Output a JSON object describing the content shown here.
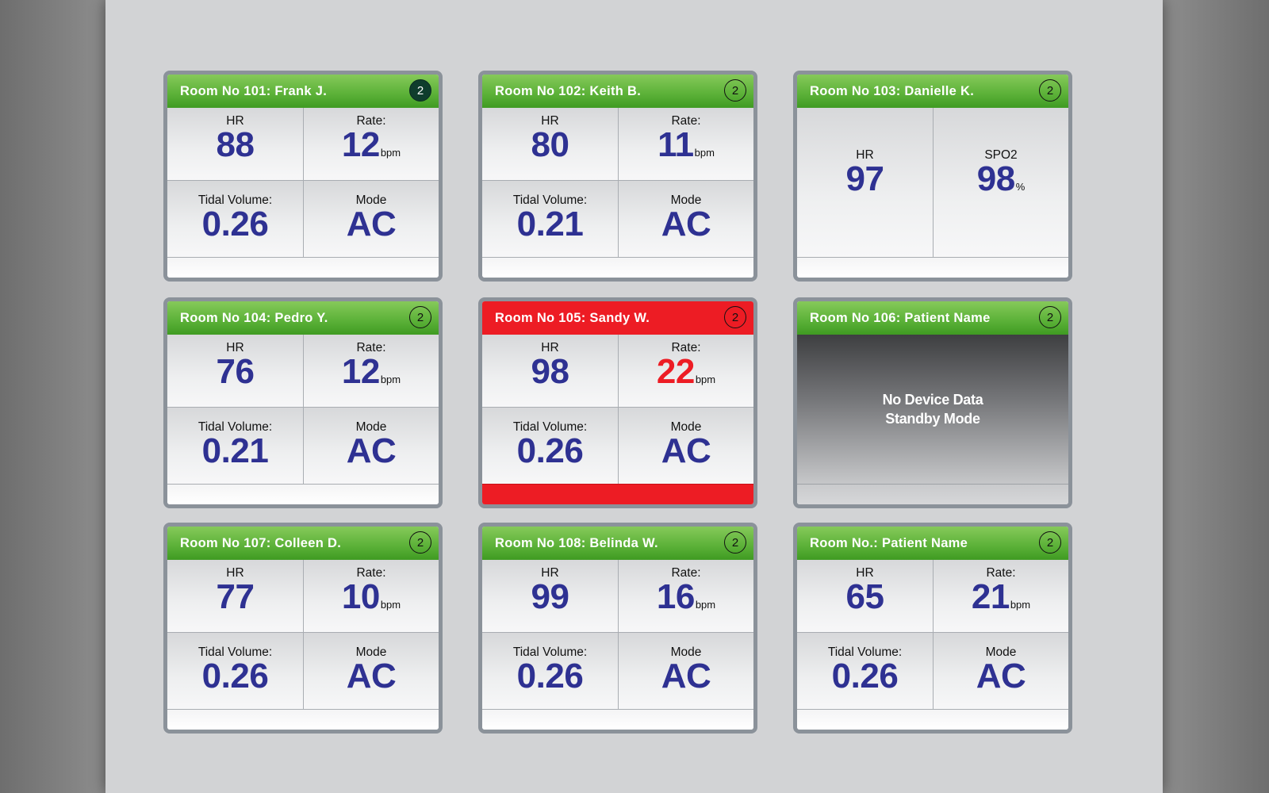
{
  "cards": [
    {
      "title": "Room No 101: Frank J.",
      "badge": "2",
      "tl_label": "HR",
      "tl_value": "88",
      "tr_label": "Rate:",
      "tr_value": "12",
      "tr_unit": "bpm",
      "bl_label": "Tidal Volume:",
      "bl_value": "0.26",
      "br_label": "Mode",
      "br_value": "AC"
    },
    {
      "title": "Room No 102: Keith B.",
      "badge": "2",
      "tl_label": "HR",
      "tl_value": "80",
      "tr_label": "Rate:",
      "tr_value": "11",
      "tr_unit": "bpm",
      "bl_label": "Tidal Volume:",
      "bl_value": "0.21",
      "br_label": "Mode",
      "br_value": "AC"
    },
    {
      "title": "Room No 103: Danielle K.",
      "badge": "2",
      "l_label": "HR",
      "l_value": "97",
      "r_label": "SPO2",
      "r_value": "98",
      "r_unit": "%"
    },
    {
      "title": "Room No 104: Pedro Y.",
      "badge": "2",
      "tl_label": "HR",
      "tl_value": "76",
      "tr_label": "Rate:",
      "tr_value": "12",
      "tr_unit": "bpm",
      "bl_label": "Tidal Volume:",
      "bl_value": "0.21",
      "br_label": "Mode",
      "br_value": "AC"
    },
    {
      "title": "Room No 105: Sandy W.",
      "badge": "2",
      "tl_label": "HR",
      "tl_value": "98",
      "tr_label": "Rate:",
      "tr_value": "22",
      "tr_unit": "bpm",
      "bl_label": "Tidal Volume:",
      "bl_value": "0.26",
      "br_label": "Mode",
      "br_value": "AC"
    },
    {
      "title": "Room No 106: Patient Name",
      "badge": "2",
      "standby_line1": "No Device Data",
      "standby_line2": "Standby Mode"
    },
    {
      "title": "Room No 107: Colleen D.",
      "badge": "2",
      "tl_label": "HR",
      "tl_value": "77",
      "tr_label": "Rate:",
      "tr_value": "10",
      "tr_unit": "bpm",
      "bl_label": "Tidal Volume:",
      "bl_value": "0.26",
      "br_label": "Mode",
      "br_value": "AC"
    },
    {
      "title": "Room No 108: Belinda W.",
      "badge": "2",
      "tl_label": "HR",
      "tl_value": "99",
      "tr_label": "Rate:",
      "tr_value": "16",
      "tr_unit": "bpm",
      "bl_label": "Tidal Volume:",
      "bl_value": "0.26",
      "br_label": "Mode",
      "br_value": "AC"
    },
    {
      "title": "Room No.: Patient Name",
      "badge": "2",
      "tl_label": "HR",
      "tl_value": "65",
      "tr_label": "Rate:",
      "tr_value": "21",
      "tr_unit": "bpm",
      "bl_label": "Tidal Volume:",
      "bl_value": "0.26",
      "br_label": "Mode",
      "br_value": "AC"
    }
  ],
  "colors": {
    "normal_header": "#5eb33a",
    "alarm": "#ed1c24",
    "value": "#2e3192"
  }
}
